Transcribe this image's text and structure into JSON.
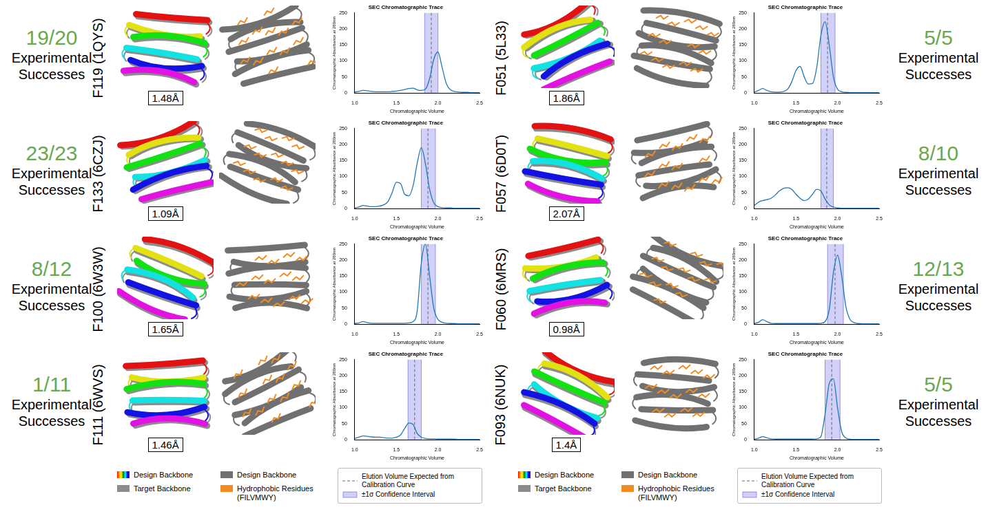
{
  "chart_data": [
    {
      "type": "line",
      "title": "SEC Chromatographic Trace",
      "x_label": "Chromatographic Volume",
      "y_label": "Chromatographic Absorbance at 280nm",
      "color": "#1f77b4",
      "x": [
        1,
        1.05,
        1.1,
        1.15,
        1.2,
        1.25,
        1.3,
        1.35,
        1.4,
        1.45,
        1.5,
        1.55,
        1.6,
        1.65,
        1.7,
        1.75,
        1.8,
        1.85,
        1.9,
        1.95,
        2,
        2.05,
        2.1,
        2.15,
        2.2,
        2.25,
        2.3,
        2.35,
        2.4,
        2.45,
        2.5
      ],
      "values": [
        3,
        5,
        8,
        7,
        5,
        4,
        4,
        4,
        4,
        5,
        6,
        8,
        11,
        14,
        15,
        10,
        8,
        12,
        45,
        105,
        128,
        80,
        30,
        10,
        5,
        3,
        2,
        2,
        1,
        1,
        1
      ],
      "xlim": [
        1,
        2.5
      ],
      "xticks": [
        {
          "value": 1,
          "label": "1.0"
        },
        {
          "value": 1.5,
          "label": "1.5"
        },
        {
          "value": 2,
          "label": "2.0"
        },
        {
          "value": 2.5,
          "label": "2.5"
        }
      ],
      "ylim": [
        0,
        250
      ],
      "yticks": [
        0,
        50,
        100,
        150,
        200,
        250
      ],
      "grid": false,
      "expected_elution": 1.92,
      "confidence_interval": [
        1.84,
        2.0
      ],
      "design": "F119 (1QYS)",
      "rmsd": "1.48Å",
      "successes": "19/20",
      "successes_label": "Experimental Successes"
    },
    {
      "type": "line",
      "title": "SEC Chromatographic Trace",
      "x_label": "Chromatographic Volume",
      "y_label": "Chromatographic Absorbance at 280nm",
      "color": "#1f77b4",
      "x": [
        1,
        1.05,
        1.1,
        1.15,
        1.2,
        1.25,
        1.3,
        1.35,
        1.4,
        1.45,
        1.5,
        1.55,
        1.6,
        1.65,
        1.7,
        1.75,
        1.8,
        1.85,
        1.9,
        1.95,
        2,
        2.05,
        2.1,
        2.15,
        2.2,
        2.25,
        2.3,
        2.35,
        2.4,
        2.45,
        2.5
      ],
      "values": [
        2,
        5,
        10,
        8,
        6,
        6,
        8,
        12,
        22,
        50,
        82,
        78,
        45,
        40,
        70,
        140,
        190,
        140,
        60,
        18,
        6,
        3,
        2,
        2,
        1,
        1,
        1,
        1,
        1,
        1,
        1
      ],
      "xlim": [
        1,
        2.5
      ],
      "xticks": [
        {
          "value": 1,
          "label": "1.0"
        },
        {
          "value": 1.5,
          "label": "1.5"
        },
        {
          "value": 2,
          "label": "2.0"
        },
        {
          "value": 2.5,
          "label": "2.5"
        }
      ],
      "ylim": [
        0,
        250
      ],
      "yticks": [
        0,
        50,
        100,
        150,
        200,
        250
      ],
      "grid": false,
      "expected_elution": 1.88,
      "confidence_interval": [
        1.8,
        1.97
      ],
      "design": "F133 (6CZJ)",
      "rmsd": "1.09Å",
      "successes": "23/23",
      "successes_label": "Experimental Successes"
    },
    {
      "type": "line",
      "title": "SEC Chromatographic Trace",
      "x_label": "Chromatographic Volume",
      "y_label": "Chromatographic Absorbance at 280nm",
      "color": "#1f77b4",
      "x": [
        1,
        1.05,
        1.1,
        1.15,
        1.2,
        1.25,
        1.3,
        1.35,
        1.4,
        1.45,
        1.5,
        1.55,
        1.6,
        1.65,
        1.7,
        1.75,
        1.8,
        1.85,
        1.9,
        1.95,
        2,
        2.05,
        2.1,
        2.15,
        2.2,
        2.25,
        2.3,
        2.35,
        2.4,
        2.45,
        2.5
      ],
      "values": [
        2,
        4,
        8,
        5,
        3,
        3,
        3,
        3,
        3,
        3,
        3,
        3,
        3,
        4,
        8,
        40,
        190,
        250,
        150,
        50,
        15,
        6,
        3,
        2,
        2,
        1,
        1,
        1,
        1,
        1,
        1
      ],
      "xlim": [
        1,
        2.5
      ],
      "xticks": [
        {
          "value": 1,
          "label": "1.0"
        },
        {
          "value": 1.5,
          "label": "1.5"
        },
        {
          "value": 2,
          "label": "2.0"
        },
        {
          "value": 2.5,
          "label": "2.5"
        }
      ],
      "ylim": [
        0,
        250
      ],
      "yticks": [
        0,
        50,
        100,
        150,
        200,
        250
      ],
      "grid": false,
      "expected_elution": 1.88,
      "confidence_interval": [
        1.8,
        1.97
      ],
      "design": "F100 (6W3W)",
      "rmsd": "1.65Å",
      "successes": "8/12",
      "successes_label": "Experimental Successes"
    },
    {
      "type": "line",
      "title": "SEC Chromatographic Trace",
      "x_label": "Chromatographic Volume",
      "y_label": "Chromatographic Absorbance at 280nm",
      "color": "#1f77b4",
      "x": [
        1,
        1.05,
        1.1,
        1.15,
        1.2,
        1.25,
        1.3,
        1.35,
        1.4,
        1.45,
        1.5,
        1.55,
        1.6,
        1.65,
        1.7,
        1.75,
        1.8,
        1.85,
        1.9,
        1.95,
        2,
        2.05,
        2.1,
        2.15,
        2.2,
        2.25,
        2.3,
        2.35,
        2.4,
        2.45,
        2.5
      ],
      "values": [
        4,
        8,
        12,
        11,
        9,
        8,
        8,
        6,
        5,
        5,
        8,
        15,
        35,
        52,
        48,
        20,
        8,
        4,
        3,
        3,
        2,
        2,
        2,
        2,
        2,
        1,
        1,
        1,
        1,
        1,
        1
      ],
      "xlim": [
        1,
        2.5
      ],
      "xticks": [
        {
          "value": 1,
          "label": "1.0"
        },
        {
          "value": 1.5,
          "label": "1.5"
        },
        {
          "value": 2,
          "label": "2.0"
        },
        {
          "value": 2.5,
          "label": "2.5"
        }
      ],
      "ylim": [
        0,
        250
      ],
      "yticks": [
        0,
        50,
        100,
        150,
        200,
        250
      ],
      "grid": false,
      "expected_elution": 1.72,
      "confidence_interval": [
        1.64,
        1.8
      ],
      "design": "F111 (6WVS)",
      "rmsd": "1.46Å",
      "successes": "1/11",
      "successes_label": "Experimental Successes"
    },
    {
      "type": "line",
      "title": "SEC Chromatographic Trace",
      "x_label": "Chromatographic Volume",
      "y_label": "Chromatographic Absorbance at 280nm",
      "color": "#1f77b4",
      "x": [
        1,
        1.05,
        1.1,
        1.15,
        1.2,
        1.25,
        1.3,
        1.35,
        1.4,
        1.45,
        1.5,
        1.55,
        1.6,
        1.65,
        1.7,
        1.75,
        1.8,
        1.85,
        1.9,
        1.95,
        2,
        2.05,
        2.1,
        2.15,
        2.2,
        2.25,
        2.3,
        2.35,
        2.4,
        2.45,
        2.5
      ],
      "values": [
        3,
        8,
        14,
        8,
        4,
        3,
        3,
        5,
        12,
        35,
        70,
        83,
        50,
        28,
        30,
        80,
        180,
        222,
        150,
        50,
        12,
        4,
        2,
        1,
        1,
        1,
        1,
        1,
        1,
        1,
        1
      ],
      "xlim": [
        1,
        2.5
      ],
      "xticks": [
        {
          "value": 1,
          "label": "1.0"
        },
        {
          "value": 1.5,
          "label": "1.5"
        },
        {
          "value": 2,
          "label": "2.0"
        },
        {
          "value": 2.5,
          "label": "2.5"
        }
      ],
      "ylim": [
        0,
        250
      ],
      "yticks": [
        0,
        50,
        100,
        150,
        200,
        250
      ],
      "grid": false,
      "expected_elution": 1.88,
      "confidence_interval": [
        1.8,
        1.97
      ],
      "design": "F051 (5L33)",
      "rmsd": "1.86Å",
      "successes": "5/5",
      "successes_label": "Experimental Successes"
    },
    {
      "type": "line",
      "title": "SEC Chromatographic Trace",
      "x_label": "Chromatographic Volume",
      "y_label": "Chromatographic Absorbance at 280nm",
      "color": "#1f77b4",
      "x": [
        1,
        1.05,
        1.1,
        1.15,
        1.2,
        1.25,
        1.3,
        1.35,
        1.4,
        1.45,
        1.5,
        1.55,
        1.6,
        1.65,
        1.7,
        1.75,
        1.8,
        1.85,
        1.9,
        1.95,
        2,
        2.05,
        2.1,
        2.15,
        2.2,
        2.25,
        2.3,
        2.35,
        2.4,
        2.45,
        2.5
      ],
      "values": [
        10,
        20,
        25,
        28,
        32,
        42,
        55,
        63,
        65,
        60,
        45,
        32,
        25,
        30,
        45,
        60,
        55,
        30,
        12,
        5,
        2,
        1,
        1,
        1,
        1,
        1,
        1,
        1,
        1,
        1,
        1
      ],
      "xlim": [
        1,
        2.5
      ],
      "xticks": [
        {
          "value": 1,
          "label": "1.0"
        },
        {
          "value": 1.5,
          "label": "1.5"
        },
        {
          "value": 2,
          "label": "2.0"
        },
        {
          "value": 2.5,
          "label": "2.5"
        }
      ],
      "ylim": [
        0,
        250
      ],
      "yticks": [
        0,
        50,
        100,
        150,
        200,
        250
      ],
      "grid": false,
      "expected_elution": 1.87,
      "confidence_interval": [
        1.8,
        1.95
      ],
      "design": "F057 (6D0T)",
      "rmsd": "2.07Å",
      "successes": "8/10",
      "successes_label": "Experimental Successes"
    },
    {
      "type": "line",
      "title": "SEC Chromatographic Trace",
      "x_label": "Chromatographic Volume",
      "y_label": "Chromatographic Absorbance at 280nm",
      "color": "#1f77b4",
      "x": [
        1,
        1.05,
        1.1,
        1.15,
        1.2,
        1.25,
        1.3,
        1.35,
        1.4,
        1.45,
        1.5,
        1.55,
        1.6,
        1.65,
        1.7,
        1.75,
        1.8,
        1.85,
        1.9,
        1.95,
        2,
        2.05,
        2.1,
        2.15,
        2.2,
        2.25,
        2.3,
        2.35,
        2.4,
        2.45,
        2.5
      ],
      "values": [
        2,
        6,
        14,
        8,
        3,
        2,
        2,
        2,
        2,
        2,
        2,
        2,
        2,
        2,
        2,
        2,
        3,
        8,
        45,
        160,
        215,
        150,
        55,
        15,
        5,
        2,
        1,
        1,
        1,
        1,
        1
      ],
      "xlim": [
        1,
        2.5
      ],
      "xticks": [
        {
          "value": 1,
          "label": "1.0"
        },
        {
          "value": 1.5,
          "label": "1.5"
        },
        {
          "value": 2,
          "label": "2.0"
        },
        {
          "value": 2.5,
          "label": "2.5"
        }
      ],
      "ylim": [
        0,
        250
      ],
      "yticks": [
        0,
        50,
        100,
        150,
        200,
        250
      ],
      "grid": false,
      "expected_elution": 1.97,
      "confidence_interval": [
        1.88,
        2.07
      ],
      "design": "F060 (6MRS)",
      "rmsd": "0.98Å",
      "successes": "12/13",
      "successes_label": "Experimental Successes"
    },
    {
      "type": "line",
      "title": "SEC Chromatographic Trace",
      "x_label": "Chromatographic Volume",
      "y_label": "Chromatographic Absorbance at 280nm",
      "color": "#1f77b4",
      "x": [
        1,
        1.05,
        1.1,
        1.15,
        1.2,
        1.25,
        1.3,
        1.35,
        1.4,
        1.45,
        1.5,
        1.55,
        1.6,
        1.65,
        1.7,
        1.75,
        1.8,
        1.85,
        1.9,
        1.95,
        2,
        2.05,
        2.1,
        2.15,
        2.2,
        2.25,
        2.3,
        2.35,
        2.4,
        2.45,
        2.5
      ],
      "values": [
        2,
        5,
        10,
        6,
        3,
        2,
        2,
        2,
        2,
        2,
        2,
        2,
        2,
        2,
        2,
        3,
        10,
        80,
        175,
        190,
        100,
        25,
        6,
        2,
        1,
        1,
        1,
        1,
        1,
        1,
        1
      ],
      "xlim": [
        1,
        2.5
      ],
      "xticks": [
        {
          "value": 1,
          "label": "1.0"
        },
        {
          "value": 1.5,
          "label": "1.5"
        },
        {
          "value": 2,
          "label": "2.0"
        },
        {
          "value": 2.5,
          "label": "2.5"
        }
      ],
      "ylim": [
        0,
        250
      ],
      "yticks": [
        0,
        50,
        100,
        150,
        200,
        250
      ],
      "grid": false,
      "expected_elution": 1.93,
      "confidence_interval": [
        1.85,
        2.03
      ],
      "design": "F093 (6NUK)",
      "rmsd": "1.4Å",
      "successes": "5/5",
      "successes_label": "Experimental Successes"
    }
  ],
  "structure_legend": {
    "design_colored": "Design Backbone",
    "target": "Target Backbone",
    "design_grey": "Design Backbone",
    "hydrophobic": "Hydrophobic Residues (FILVMWY)"
  },
  "trace_legend": {
    "expected": "Elution Volume Expected from Calibration Curve",
    "interval": "±1σ Confidence Interval"
  }
}
